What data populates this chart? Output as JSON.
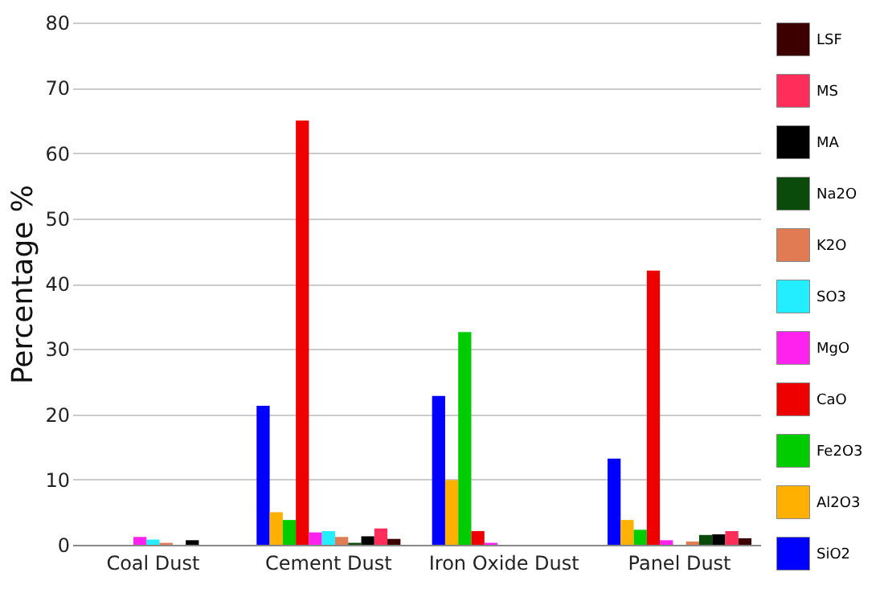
{
  "chart_data": {
    "type": "bar",
    "ylabel": "Percentage %",
    "categories": [
      "Coal Dust",
      "Cement Dust",
      "Iron Oxide Dust",
      "Panel Dust"
    ],
    "ylim": [
      0,
      80
    ],
    "yticks": [
      0,
      10,
      20,
      30,
      40,
      50,
      60,
      70,
      80
    ],
    "grid": "y",
    "legend": "right",
    "series": [
      {
        "name": "SiO2",
        "color": "#0000ff",
        "values": [
          null,
          21.3,
          22.8,
          13.2
        ]
      },
      {
        "name": "Al2O3",
        "color": "#ffb000",
        "values": [
          null,
          5.0,
          9.9,
          3.8
        ]
      },
      {
        "name": "Fe2O3",
        "color": "#00cc00",
        "values": [
          null,
          3.8,
          32.6,
          2.3
        ]
      },
      {
        "name": "CaO",
        "color": "#ee0000",
        "values": [
          null,
          65,
          2.1,
          42
        ]
      },
      {
        "name": "MgO",
        "color": "#ff22ee",
        "values": [
          1.2,
          1.9,
          0.3,
          0.7
        ]
      },
      {
        "name": "SO3",
        "color": "#22eeff",
        "values": [
          0.8,
          2.1,
          null,
          null
        ]
      },
      {
        "name": "K2O",
        "color": "#e07b54",
        "values": [
          0.3,
          1.2,
          null,
          0.5
        ]
      },
      {
        "name": "Na2O",
        "color": "#0a4a0a",
        "values": [
          null,
          0.3,
          null,
          1.5
        ]
      },
      {
        "name": "MA",
        "color": "#000000",
        "values": [
          0.7,
          1.3,
          null,
          1.6
        ]
      },
      {
        "name": "MS",
        "color": "#ff2d5a",
        "values": [
          null,
          2.5,
          null,
          2.1
        ]
      },
      {
        "name": "LSF",
        "color": "#3d0000",
        "values": [
          null,
          0.9,
          null,
          1.0
        ]
      }
    ]
  }
}
